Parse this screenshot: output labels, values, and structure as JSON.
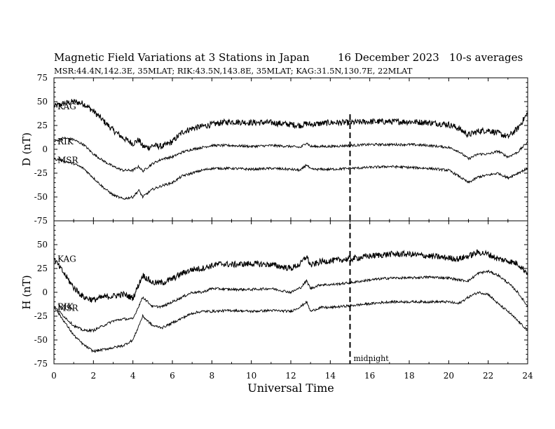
{
  "chart_data": [
    {
      "type": "line",
      "title": "Magnetic Field Variations at 3 Stations in Japan",
      "date": "16 December 2023",
      "averaging": "10-s averages",
      "subtitle": "MSR:44.4N,142.3E, 35MLAT;  RIK:43.5N,143.8E, 35MLAT;  KAG:31.5N,130.7E, 22MLAT",
      "panel": "D",
      "ylabel": "D (nT)",
      "ylim": [
        -75,
        75
      ],
      "yticks": [
        "75",
        "50",
        "25",
        "0",
        "-25",
        "-50",
        "-75"
      ],
      "xlim": [
        0,
        24
      ],
      "grid": false,
      "series": [
        {
          "name": "KAG",
          "x": [
            0,
            0.5,
            1,
            1.5,
            2,
            2.5,
            3,
            3.5,
            4,
            4.3,
            4.5,
            4.8,
            5,
            5.5,
            6,
            6.5,
            7,
            7.5,
            8,
            8.5,
            9,
            10,
            11,
            12,
            12.5,
            12.8,
            13,
            14,
            15,
            16,
            17,
            18,
            19,
            20,
            20.5,
            21,
            21.5,
            22,
            22.5,
            23,
            23.5,
            24
          ],
          "y": [
            45,
            48,
            50,
            48,
            40,
            30,
            20,
            12,
            6,
            10,
            3,
            2,
            4,
            3,
            8,
            18,
            22,
            24,
            26,
            28,
            29,
            28,
            28,
            26,
            25,
            27,
            26,
            28,
            28,
            29,
            29,
            29,
            28,
            26,
            22,
            15,
            19,
            20,
            17,
            13,
            22,
            38
          ]
        },
        {
          "name": "RIK",
          "x": [
            0,
            0.5,
            1,
            1.5,
            2,
            2.5,
            3,
            3.5,
            4,
            4.3,
            4.5,
            4.8,
            5,
            5.5,
            6,
            6.5,
            7,
            7.5,
            8,
            9,
            10,
            11,
            12,
            12.5,
            12.8,
            13,
            14,
            15,
            16,
            17,
            18,
            19,
            20,
            20.5,
            21,
            21.5,
            22,
            22.5,
            23,
            23.5,
            24
          ],
          "y": [
            8,
            12,
            10,
            5,
            -5,
            -12,
            -18,
            -22,
            -22,
            -18,
            -23,
            -18,
            -15,
            -10,
            -8,
            -3,
            0,
            2,
            4,
            4,
            3,
            4,
            3,
            2,
            7,
            3,
            3,
            4,
            5,
            5,
            5,
            4,
            2,
            -2,
            -10,
            -5,
            -5,
            -2,
            -8,
            -3,
            8
          ]
        },
        {
          "name": "MSR",
          "x": [
            0,
            0.5,
            1,
            1.5,
            2,
            2.5,
            3,
            3.5,
            4,
            4.3,
            4.5,
            4.8,
            5,
            5.5,
            6,
            6.5,
            7,
            7.5,
            8,
            9,
            10,
            11,
            12,
            12.5,
            12.8,
            13,
            14,
            15,
            16,
            17,
            18,
            19,
            20,
            20.5,
            21,
            21.5,
            22,
            22.5,
            23,
            23.5,
            24
          ],
          "y": [
            -10,
            -12,
            -15,
            -20,
            -30,
            -40,
            -48,
            -52,
            -50,
            -43,
            -50,
            -45,
            -42,
            -38,
            -35,
            -28,
            -25,
            -22,
            -20,
            -20,
            -21,
            -20,
            -21,
            -22,
            -16,
            -21,
            -21,
            -20,
            -19,
            -18,
            -19,
            -20,
            -22,
            -28,
            -35,
            -29,
            -27,
            -25,
            -30,
            -25,
            -20
          ]
        }
      ]
    },
    {
      "type": "line",
      "panel": "H",
      "ylabel": "H (nT)",
      "ylim": [
        -75,
        75
      ],
      "yticks": [
        "50",
        "25",
        "0",
        "-25",
        "-50",
        "-75"
      ],
      "xlim": [
        0,
        24
      ],
      "xlabel": "Universal Time",
      "xticks": [
        "0",
        "2",
        "4",
        "6",
        "8",
        "10",
        "12",
        "14",
        "16",
        "18",
        "20",
        "22",
        "24"
      ],
      "annotation": {
        "x": 15,
        "label": "midnight",
        "style": "dashed vertical line"
      },
      "grid": false,
      "series": [
        {
          "name": "KAG",
          "x": [
            0,
            0.5,
            1,
            1.5,
            2,
            2.5,
            3,
            3.5,
            4,
            4.5,
            5,
            5.5,
            6,
            6.5,
            7,
            7.5,
            8,
            8.5,
            9,
            10,
            11,
            12,
            12.5,
            12.8,
            13,
            13.5,
            14,
            15,
            16,
            17,
            18,
            19,
            20,
            20.5,
            21,
            21.5,
            22,
            22.5,
            23,
            23.5,
            24
          ],
          "y": [
            35,
            20,
            5,
            -5,
            -8,
            -5,
            -4,
            -2,
            -6,
            18,
            10,
            10,
            14,
            20,
            24,
            25,
            28,
            30,
            29,
            30,
            29,
            25,
            30,
            38,
            28,
            32,
            33,
            35,
            38,
            40,
            40,
            38,
            36,
            35,
            38,
            42,
            40,
            35,
            33,
            30,
            20
          ]
        },
        {
          "name": "RIK",
          "x": [
            0,
            0.5,
            1,
            1.5,
            2,
            2.5,
            3,
            3.5,
            4,
            4.5,
            5,
            5.5,
            6,
            6.5,
            7,
            7.5,
            8,
            9,
            10,
            11,
            12,
            12.5,
            12.8,
            13,
            13.5,
            14,
            15,
            16,
            17,
            18,
            19,
            20,
            20.5,
            21,
            21.5,
            22,
            22.5,
            23,
            23.5,
            24
          ],
          "y": [
            -15,
            -25,
            -35,
            -40,
            -40,
            -35,
            -30,
            -28,
            -28,
            -5,
            -15,
            -15,
            -10,
            -5,
            0,
            0,
            4,
            3,
            3,
            4,
            0,
            5,
            12,
            4,
            8,
            8,
            10,
            13,
            15,
            15,
            16,
            15,
            13,
            12,
            20,
            22,
            18,
            10,
            0,
            -15
          ]
        },
        {
          "name": "MSR",
          "x": [
            0,
            0.5,
            1,
            1.5,
            2,
            2.5,
            3,
            3.5,
            4,
            4.5,
            5,
            5.5,
            6,
            6.5,
            7,
            7.5,
            8,
            9,
            10,
            11,
            12,
            12.5,
            12.8,
            13,
            13.5,
            14,
            15,
            16,
            17,
            18,
            19,
            20,
            20.5,
            21,
            21.5,
            22,
            22.5,
            23,
            23.5,
            24
          ],
          "y": [
            -15,
            -30,
            -45,
            -55,
            -62,
            -60,
            -58,
            -56,
            -50,
            -25,
            -35,
            -37,
            -32,
            -27,
            -22,
            -20,
            -20,
            -19,
            -20,
            -19,
            -20,
            -15,
            -10,
            -20,
            -16,
            -16,
            -14,
            -12,
            -10,
            -10,
            -10,
            -10,
            -12,
            -5,
            0,
            -2,
            -12,
            -20,
            -30,
            -40
          ]
        }
      ]
    }
  ],
  "colors": {
    "line": "#000000",
    "background": "#ffffff"
  }
}
